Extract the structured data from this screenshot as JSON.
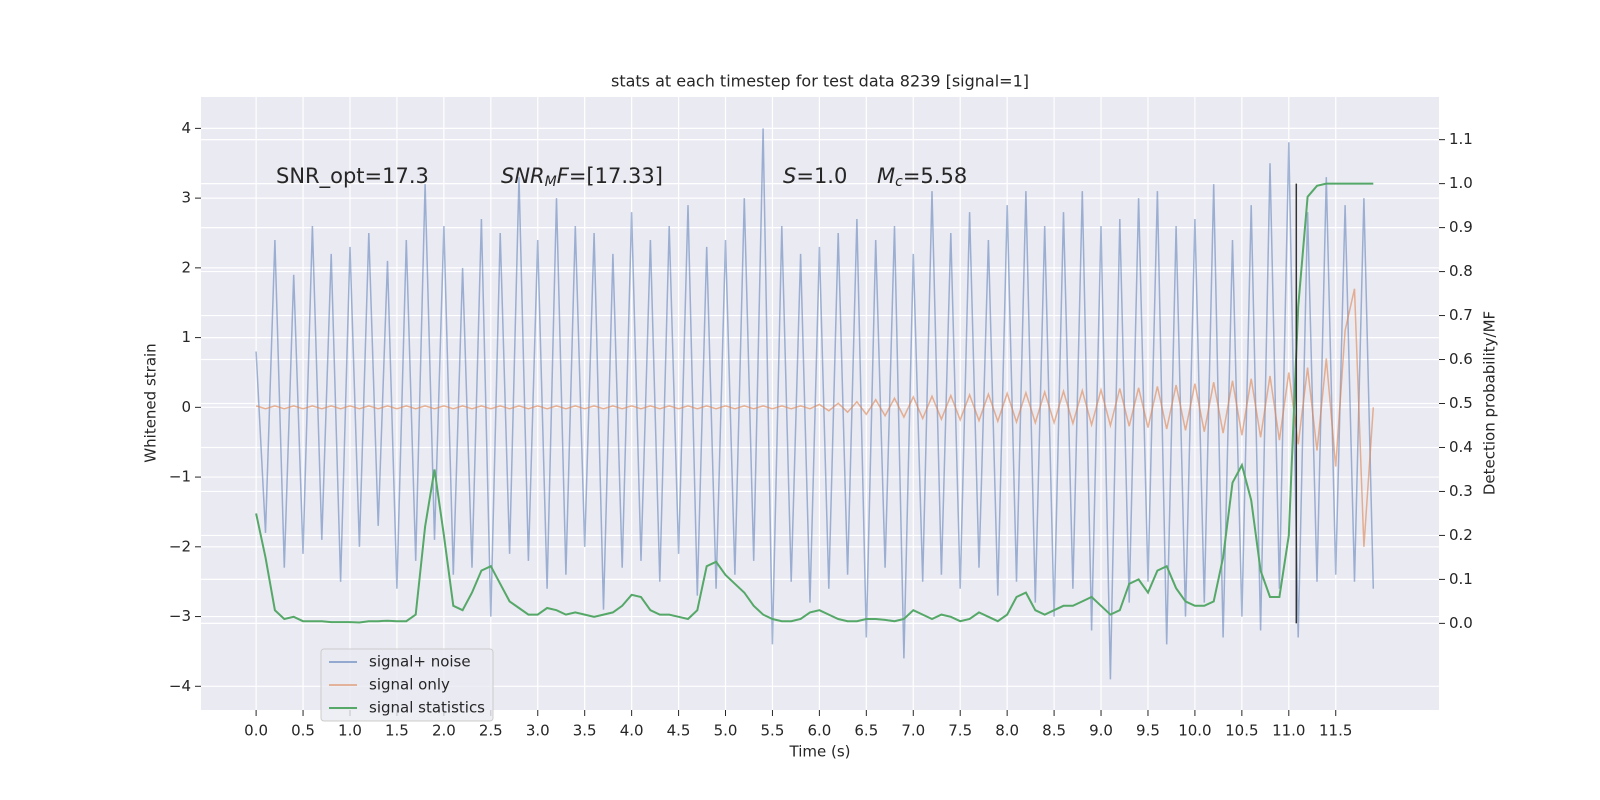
{
  "chart_data": {
    "type": "line",
    "title": "stats at each timestep for test data 8239 [signal=1]",
    "xlabel": "Time (s)",
    "ylabel": "Whitened strain",
    "y2label": "Detection probability/MF",
    "annotations": [
      {
        "parts": [
          "SNR_opt=17.3"
        ]
      },
      {
        "parts": [
          "SNR",
          "M",
          "F",
          "=[17.33]"
        ]
      },
      {
        "parts": [
          "S",
          "=1.0"
        ]
      },
      {
        "parts": [
          "M",
          "c",
          "=5.58"
        ]
      }
    ],
    "xlim": [
      -0.587,
      12.6
    ],
    "ylim": [
      -4.34,
      4.45
    ],
    "y2lim": [
      -0.197,
      1.197
    ],
    "xticks": [
      {
        "value": 0,
        "label": "0.0"
      },
      0.5,
      {
        "value": 1,
        "label": "1.0"
      },
      1.5,
      {
        "value": 2,
        "label": "2.0"
      },
      2.5,
      {
        "value": 3,
        "label": "3.0"
      },
      3.5,
      {
        "value": 4,
        "label": "4.0"
      },
      4.5,
      {
        "value": 5,
        "label": "5.0"
      },
      5.5,
      {
        "value": 6,
        "label": "6.0"
      },
      6.5,
      {
        "value": 7,
        "label": "7.0"
      },
      7.5,
      {
        "value": 8,
        "label": "8.0"
      },
      8.5,
      {
        "value": 9,
        "label": "9.0"
      },
      9.5,
      {
        "value": 10,
        "label": "10.0"
      },
      10.5,
      {
        "value": 11,
        "label": "11.0"
      },
      11.5
    ],
    "yticks": [
      {
        "value": -4,
        "label": "−4"
      },
      {
        "value": -3,
        "label": "−3"
      },
      {
        "value": -2,
        "label": "−2"
      },
      {
        "value": -1,
        "label": "−1"
      },
      0,
      1,
      2,
      3,
      4
    ],
    "y2ticks": [
      {
        "value": 0,
        "label": "0.0"
      },
      0.1,
      0.2,
      0.3,
      0.4,
      0.5,
      0.6,
      0.7,
      0.8,
      0.9,
      {
        "value": 1,
        "label": "1.0"
      },
      1.1
    ],
    "grid": true,
    "legend": "lower left",
    "x": [
      0,
      0.1,
      0.2,
      0.3,
      0.4,
      0.5,
      0.6,
      0.7,
      0.8,
      0.9,
      1,
      1.1,
      1.2,
      1.3,
      1.4,
      1.5,
      1.6,
      1.7,
      1.8,
      1.9,
      2,
      2.1,
      2.2,
      2.3,
      2.4,
      2.5,
      2.6,
      2.7,
      2.8,
      2.9,
      3,
      3.1,
      3.2,
      3.3,
      3.4,
      3.5,
      3.6,
      3.7,
      3.8,
      3.9,
      4,
      4.1,
      4.2,
      4.3,
      4.4,
      4.5,
      4.6,
      4.7,
      4.8,
      4.9,
      5,
      5.1,
      5.2,
      5.3,
      5.4,
      5.5,
      5.6,
      5.7,
      5.8,
      5.9,
      6,
      6.1,
      6.2,
      6.3,
      6.4,
      6.5,
      6.6,
      6.7,
      6.8,
      6.9,
      7,
      7.1,
      7.2,
      7.3,
      7.4,
      7.5,
      7.6,
      7.7,
      7.8,
      7.9,
      8,
      8.1,
      8.2,
      8.3,
      8.4,
      8.5,
      8.6,
      8.7,
      8.8,
      8.9,
      9,
      9.1,
      9.2,
      9.3,
      9.4,
      9.5,
      9.6,
      9.7,
      9.8,
      9.9,
      10,
      10.1,
      10.2,
      10.3,
      10.4,
      10.5,
      10.6,
      10.7,
      10.8,
      10.9,
      11,
      11.1,
      11.2,
      11.3,
      11.4,
      11.5,
      11.6,
      11.7,
      11.8,
      11.9
    ],
    "series": [
      {
        "name": "signal+ noise",
        "color": "#4c72b0",
        "axis": "y",
        "values": [
          0.8,
          -1.8,
          2.4,
          -2.3,
          1.9,
          -2.1,
          2.6,
          -1.9,
          2.2,
          -2.5,
          2.3,
          -2.0,
          2.5,
          -1.7,
          2.1,
          -2.6,
          2.4,
          -2.2,
          3.2,
          -1.9,
          2.6,
          -2.4,
          2.0,
          -2.3,
          2.7,
          -3.0,
          2.5,
          -2.1,
          3.3,
          -2.2,
          2.4,
          -2.6,
          3.0,
          -2.4,
          2.6,
          -2.0,
          2.5,
          -2.9,
          2.2,
          -2.3,
          2.8,
          -2.2,
          2.4,
          -2.5,
          2.6,
          -2.1,
          2.9,
          -2.7,
          2.3,
          -2.6,
          2.4,
          -2.4,
          3.0,
          -2.2,
          4.0,
          -3.4,
          2.6,
          -2.5,
          2.2,
          -2.8,
          2.3,
          -2.6,
          2.5,
          -2.4,
          2.7,
          -3.3,
          2.4,
          -2.3,
          2.6,
          -3.6,
          2.2,
          -2.5,
          3.1,
          -2.4,
          2.5,
          -2.6,
          2.8,
          -2.3,
          2.4,
          -2.7,
          2.9,
          -2.5,
          3.1,
          -2.8,
          2.6,
          -3.0,
          2.8,
          -2.6,
          3.1,
          -3.2,
          2.6,
          -3.9,
          2.7,
          -2.8,
          3.0,
          -2.5,
          3.1,
          -3.4,
          2.6,
          -3.0,
          2.7,
          -2.8,
          3.2,
          -3.3,
          2.4,
          -3.0,
          2.9,
          -3.2,
          3.5,
          -2.6,
          3.8,
          -3.3,
          2.8,
          -2.5,
          3.3,
          -2.4,
          2.9,
          -2.5,
          3.0,
          -2.6
        ]
      },
      {
        "name": "signal only",
        "color": "#dd8452",
        "axis": "y",
        "values": [
          0.02,
          -0.02,
          0.02,
          -0.02,
          0.02,
          -0.02,
          0.02,
          -0.02,
          0.02,
          -0.02,
          0.02,
          -0.02,
          0.02,
          -0.02,
          0.02,
          -0.02,
          0.02,
          -0.02,
          0.02,
          -0.02,
          0.02,
          -0.02,
          0.02,
          -0.02,
          0.02,
          -0.02,
          0.02,
          -0.02,
          0.02,
          -0.02,
          0.02,
          -0.02,
          0.02,
          -0.02,
          0.02,
          -0.02,
          0.02,
          -0.02,
          0.02,
          -0.02,
          0.02,
          -0.02,
          0.02,
          -0.02,
          0.02,
          -0.02,
          0.02,
          -0.02,
          0.02,
          -0.02,
          0.02,
          -0.02,
          0.02,
          -0.02,
          0.02,
          -0.02,
          0.02,
          -0.02,
          0.02,
          -0.02,
          0.04,
          -0.05,
          0.06,
          -0.07,
          0.08,
          -0.1,
          0.11,
          -0.12,
          0.13,
          -0.14,
          0.15,
          -0.16,
          0.16,
          -0.17,
          0.17,
          -0.18,
          0.18,
          -0.19,
          0.19,
          -0.2,
          0.2,
          -0.21,
          0.21,
          -0.22,
          0.22,
          -0.22,
          0.23,
          -0.23,
          0.24,
          -0.25,
          0.25,
          -0.26,
          0.27,
          -0.27,
          0.28,
          -0.29,
          0.3,
          -0.31,
          0.32,
          -0.33,
          0.34,
          -0.35,
          0.36,
          -0.37,
          0.38,
          -0.4,
          0.41,
          -0.43,
          0.45,
          -0.47,
          0.5,
          -0.53,
          0.57,
          -0.62,
          0.7,
          -0.85,
          1.1,
          1.7,
          -2.0,
          0
        ]
      },
      {
        "name": "signal statistics",
        "color": "#55a868",
        "axis": "y2",
        "values": [
          0.25,
          0.15,
          0.03,
          0.01,
          0.015,
          0.005,
          0.005,
          0.005,
          0.003,
          0.003,
          0.003,
          0.002,
          0.005,
          0.005,
          0.006,
          0.005,
          0.005,
          0.02,
          0.22,
          0.35,
          0.2,
          0.04,
          0.03,
          0.07,
          0.12,
          0.13,
          0.09,
          0.05,
          0.035,
          0.02,
          0.02,
          0.035,
          0.03,
          0.02,
          0.025,
          0.02,
          0.015,
          0.02,
          0.025,
          0.04,
          0.065,
          0.06,
          0.03,
          0.02,
          0.02,
          0.015,
          0.01,
          0.03,
          0.13,
          0.14,
          0.11,
          0.09,
          0.07,
          0.04,
          0.02,
          0.01,
          0.005,
          0.005,
          0.01,
          0.025,
          0.03,
          0.02,
          0.01,
          0.005,
          0.005,
          0.01,
          0.01,
          0.008,
          0.005,
          0.01,
          0.03,
          0.02,
          0.01,
          0.02,
          0.015,
          0.005,
          0.01,
          0.025,
          0.015,
          0.005,
          0.02,
          0.06,
          0.07,
          0.03,
          0.02,
          0.03,
          0.04,
          0.04,
          0.05,
          0.06,
          0.04,
          0.02,
          0.03,
          0.09,
          0.1,
          0.07,
          0.12,
          0.13,
          0.08,
          0.05,
          0.04,
          0.04,
          0.05,
          0.15,
          0.32,
          0.36,
          0.28,
          0.12,
          0.06,
          0.06,
          0.2,
          0.72,
          0.97,
          0.995,
          1.0,
          1.0,
          1.0,
          1.0,
          1.0,
          1.0
        ]
      }
    ],
    "vertical_line": {
      "x": 11.08,
      "y2": [
        0,
        1
      ],
      "color": "#333333"
    }
  }
}
